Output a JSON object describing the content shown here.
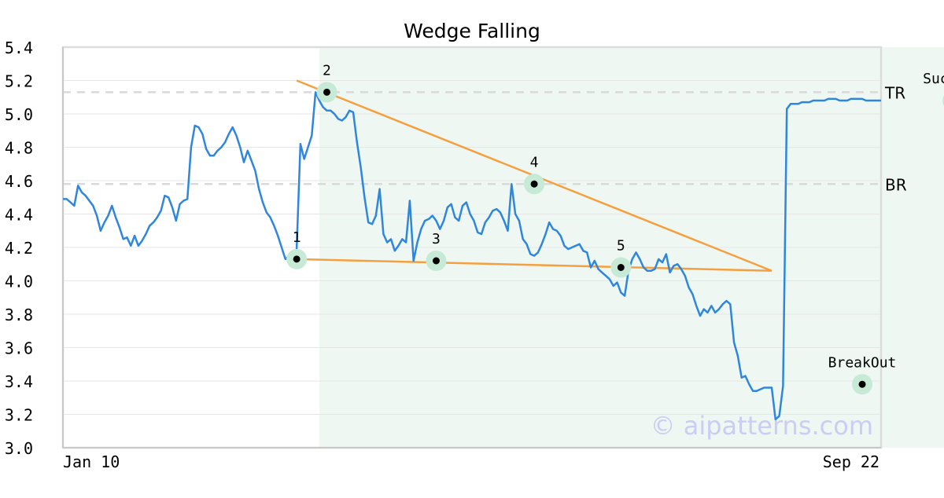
{
  "chart_data": {
    "type": "line",
    "title": "Wedge Falling",
    "xlabel": "",
    "ylabel": "",
    "ylim": [
      3.0,
      5.4
    ],
    "yticks": [
      "3.0",
      "3.2",
      "3.4",
      "3.6",
      "3.8",
      "4.0",
      "4.2",
      "4.4",
      "4.6",
      "4.8",
      "5.0",
      "5.2",
      "5.4"
    ],
    "x_tick_labels": [
      "Jan 10",
      "Sep 22"
    ],
    "grid": true,
    "pattern_shaded_range": [
      68,
      270
    ],
    "series": [
      {
        "color": "#2e86de",
        "values": [
          4.49,
          4.49,
          4.47,
          4.45,
          4.57,
          4.53,
          4.51,
          4.48,
          4.45,
          4.39,
          4.3,
          4.35,
          4.39,
          4.45,
          4.38,
          4.32,
          4.25,
          4.26,
          4.21,
          4.27,
          4.21,
          4.24,
          4.28,
          4.33,
          4.35,
          4.38,
          4.42,
          4.51,
          4.5,
          4.44,
          4.36,
          4.46,
          4.48,
          4.49,
          4.8,
          4.93,
          4.92,
          4.88,
          4.79,
          4.75,
          4.75,
          4.78,
          4.8,
          4.83,
          4.88,
          4.92,
          4.87,
          4.8,
          4.71,
          4.78,
          4.72,
          4.66,
          4.55,
          4.47,
          4.41,
          4.38,
          4.33,
          4.27,
          4.2,
          4.13,
          4.15,
          4.16,
          4.19,
          4.82,
          4.73,
          4.8,
          4.87,
          5.13,
          5.08,
          5.04,
          5.02,
          5.02,
          5.0,
          4.97,
          4.96,
          4.98,
          5.02,
          5.01,
          4.83,
          4.68,
          4.5,
          4.35,
          4.34,
          4.39,
          4.55,
          4.28,
          4.23,
          4.25,
          4.18,
          4.21,
          4.25,
          4.23,
          4.48,
          4.12,
          4.23,
          4.31,
          4.36,
          4.37,
          4.39,
          4.36,
          4.31,
          4.36,
          4.44,
          4.46,
          4.38,
          4.36,
          4.45,
          4.47,
          4.4,
          4.36,
          4.29,
          4.28,
          4.35,
          4.38,
          4.42,
          4.43,
          4.41,
          4.36,
          4.3,
          4.58,
          4.4,
          4.36,
          4.25,
          4.22,
          4.16,
          4.15,
          4.17,
          4.22,
          4.28,
          4.35,
          4.31,
          4.3,
          4.27,
          4.21,
          4.19,
          4.2,
          4.21,
          4.22,
          4.18,
          4.17,
          4.08,
          4.12,
          4.07,
          4.05,
          4.03,
          4.01,
          3.97,
          3.99,
          3.93,
          3.91,
          4.06,
          4.13,
          4.17,
          4.13,
          4.08,
          4.06,
          4.06,
          4.07,
          4.13,
          4.11,
          4.16,
          4.05,
          4.09,
          4.1,
          4.07,
          4.03,
          3.96,
          3.92,
          3.85,
          3.79,
          3.83,
          3.81,
          3.85,
          3.81,
          3.83,
          3.86,
          3.88,
          3.86,
          3.63,
          3.55,
          3.42,
          3.43,
          3.38,
          3.34,
          3.34,
          3.35,
          3.36,
          3.36,
          3.36,
          3.17,
          3.19,
          3.37,
          5.03,
          5.06,
          5.06,
          5.06,
          5.07,
          5.07,
          5.07,
          5.08,
          5.08,
          5.08,
          5.08,
          5.09,
          5.09,
          5.09,
          5.08,
          5.08,
          5.08,
          5.09,
          5.09,
          5.09,
          5.09,
          5.08,
          5.08,
          5.08,
          5.08,
          5.08
        ]
      }
    ],
    "resistance_lines": [
      {
        "label": "TR",
        "value": 5.13
      },
      {
        "label": "BR",
        "value": 4.58
      }
    ],
    "trend_lines": [
      {
        "from": [
          62,
          5.2
        ],
        "to": [
          188,
          4.06
        ],
        "color": "#f4a040"
      },
      {
        "from": [
          62,
          4.13
        ],
        "to": [
          188,
          4.06
        ],
        "color": "#f4a040"
      }
    ],
    "points": [
      {
        "label": "1",
        "x": 62,
        "y": 4.13,
        "label_pos": "above"
      },
      {
        "label": "2",
        "x": 70,
        "y": 5.13,
        "label_pos": "above"
      },
      {
        "label": "3",
        "x": 99,
        "y": 4.12,
        "label_pos": "above"
      },
      {
        "label": "4",
        "x": 125,
        "y": 4.58,
        "label_pos": "above"
      },
      {
        "label": "5",
        "x": 148,
        "y": 4.08,
        "label_pos": "above"
      },
      {
        "label": "BreakOut",
        "x": 212,
        "y": 3.38,
        "label_pos": "above"
      },
      {
        "label": "Success",
        "x": 236,
        "y": 5.08,
        "label_pos": "above"
      }
    ],
    "watermark": "© aipatterns.com"
  }
}
